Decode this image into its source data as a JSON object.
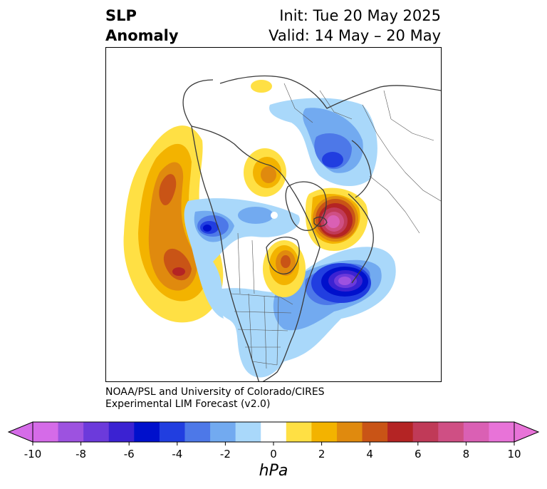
{
  "title": {
    "left_line1": "SLP",
    "left_line2": "Anomaly",
    "right_line1": "Init: Tue 20 May 2025",
    "right_line2": "Valid: 14 May – 20 May"
  },
  "credit": {
    "line1": "NOAA/PSL and University of Colorado/CIRES",
    "line2": "Experimental LIM Forecast (v2.0)"
  },
  "colorbar": {
    "unit": "hPa",
    "tick_labels": [
      "-10",
      "-8",
      "-6",
      "-4",
      "-2",
      "0",
      "2",
      "4",
      "6",
      "8",
      "10"
    ],
    "colors": [
      "#d56be8",
      "#9d52e0",
      "#6c3adb",
      "#3b22d2",
      "#0010cc",
      "#213ee0",
      "#4d78e8",
      "#72aaf0",
      "#a9d8fa",
      "#ffffff",
      "#ffe044",
      "#f3b300",
      "#e08a0e",
      "#c95416",
      "#b42424",
      "#c03a58",
      "#cf4f84",
      "#da60b4",
      "#e873d8"
    ],
    "extend_low_color": "#d56be8",
    "extend_high_color": "#e873d8"
  },
  "map": {
    "projection": "polar stereographic (North America / North Atlantic)",
    "field": "sea level pressure anomaly"
  }
}
